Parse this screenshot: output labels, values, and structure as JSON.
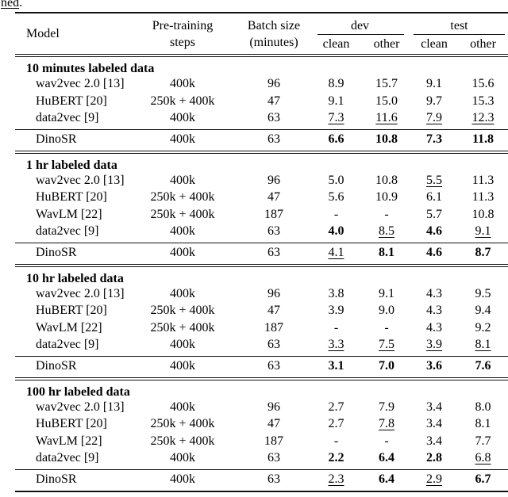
{
  "caption": {
    "underlined": "ned",
    "trailing": "."
  },
  "table": {
    "header": {
      "model": "Model",
      "pretraining_line1": "Pre-training",
      "pretraining_line2": "steps",
      "batch_line1": "Batch size",
      "batch_line2": "(minutes)",
      "dev": "dev",
      "test": "test",
      "dev_clean": "clean",
      "dev_other": "other",
      "test_clean": "clean",
      "test_other": "other"
    },
    "sections": [
      {
        "title": "10 minutes labeled data",
        "rows": [
          {
            "model": "wav2vec 2.0 [13]",
            "steps": "400k",
            "batch": "96",
            "vals": [
              {
                "t": "8.9"
              },
              {
                "t": "15.7"
              },
              {
                "t": "9.1"
              },
              {
                "t": "15.6"
              }
            ]
          },
          {
            "model": "HuBERT [20]",
            "steps": "250k + 400k",
            "batch": "47",
            "vals": [
              {
                "t": "9.1"
              },
              {
                "t": "15.0"
              },
              {
                "t": "9.7"
              },
              {
                "t": "15.3"
              }
            ]
          },
          {
            "model": "data2vec [9]",
            "steps": "400k",
            "batch": "63",
            "vals": [
              {
                "t": "7.3",
                "s": "u"
              },
              {
                "t": "11.6",
                "s": "u"
              },
              {
                "t": "7.9",
                "s": "u"
              },
              {
                "t": "12.3",
                "s": "u"
              }
            ]
          }
        ],
        "dinosr": {
          "model": "DinoSR",
          "steps": "400k",
          "batch": "63",
          "vals": [
            {
              "t": "6.6",
              "s": "b"
            },
            {
              "t": "10.8",
              "s": "b"
            },
            {
              "t": "7.3",
              "s": "b"
            },
            {
              "t": "11.8",
              "s": "b"
            }
          ]
        }
      },
      {
        "title": "1 hr labeled data",
        "rows": [
          {
            "model": "wav2vec 2.0 [13]",
            "steps": "400k",
            "batch": "96",
            "vals": [
              {
                "t": "5.0"
              },
              {
                "t": "10.8"
              },
              {
                "t": "5.5",
                "s": "u"
              },
              {
                "t": "11.3"
              }
            ]
          },
          {
            "model": "HuBERT [20]",
            "steps": "250k + 400k",
            "batch": "47",
            "vals": [
              {
                "t": "5.6"
              },
              {
                "t": "10.9"
              },
              {
                "t": "6.1"
              },
              {
                "t": "11.3"
              }
            ]
          },
          {
            "model": "WavLM [22]",
            "steps": "250k + 400k",
            "batch": "187",
            "vals": [
              {
                "t": "-"
              },
              {
                "t": "-"
              },
              {
                "t": "5.7"
              },
              {
                "t": "10.8"
              }
            ]
          },
          {
            "model": "data2vec [9]",
            "steps": "400k",
            "batch": "63",
            "vals": [
              {
                "t": "4.0",
                "s": "b"
              },
              {
                "t": "8.5",
                "s": "u"
              },
              {
                "t": "4.6",
                "s": "b"
              },
              {
                "t": "9.1",
                "s": "u"
              }
            ]
          }
        ],
        "dinosr": {
          "model": "DinoSR",
          "steps": "400k",
          "batch": "63",
          "vals": [
            {
              "t": "4.1",
              "s": "u"
            },
            {
              "t": "8.1",
              "s": "b"
            },
            {
              "t": "4.6",
              "s": "b"
            },
            {
              "t": "8.7",
              "s": "b"
            }
          ]
        }
      },
      {
        "title": "10 hr labeled data",
        "rows": [
          {
            "model": "wav2vec 2.0 [13]",
            "steps": "400k",
            "batch": "96",
            "vals": [
              {
                "t": "3.8"
              },
              {
                "t": "9.1"
              },
              {
                "t": "4.3"
              },
              {
                "t": "9.5"
              }
            ]
          },
          {
            "model": "HuBERT [20]",
            "steps": "250k + 400k",
            "batch": "47",
            "vals": [
              {
                "t": "3.9"
              },
              {
                "t": "9.0"
              },
              {
                "t": "4.3"
              },
              {
                "t": "9.4"
              }
            ]
          },
          {
            "model": "WavLM [22]",
            "steps": "250k + 400k",
            "batch": "187",
            "vals": [
              {
                "t": "-"
              },
              {
                "t": "-"
              },
              {
                "t": "4.3"
              },
              {
                "t": "9.2"
              }
            ]
          },
          {
            "model": "data2vec [9]",
            "steps": "400k",
            "batch": "63",
            "vals": [
              {
                "t": "3.3",
                "s": "u"
              },
              {
                "t": "7.5",
                "s": "u"
              },
              {
                "t": "3.9",
                "s": "u"
              },
              {
                "t": "8.1",
                "s": "u"
              }
            ]
          }
        ],
        "dinosr": {
          "model": "DinoSR",
          "steps": "400k",
          "batch": "63",
          "vals": [
            {
              "t": "3.1",
              "s": "b"
            },
            {
              "t": "7.0",
              "s": "b"
            },
            {
              "t": "3.6",
              "s": "b"
            },
            {
              "t": "7.6",
              "s": "b"
            }
          ]
        }
      },
      {
        "title": "100 hr labeled data",
        "rows": [
          {
            "model": "wav2vec 2.0 [13]",
            "steps": "400k",
            "batch": "96",
            "vals": [
              {
                "t": "2.7"
              },
              {
                "t": "7.9"
              },
              {
                "t": "3.4"
              },
              {
                "t": "8.0"
              }
            ]
          },
          {
            "model": "HuBERT [20]",
            "steps": "250k + 400k",
            "batch": "47",
            "vals": [
              {
                "t": "2.7"
              },
              {
                "t": "7.8",
                "s": "u"
              },
              {
                "t": "3.4"
              },
              {
                "t": "8.1"
              }
            ]
          },
          {
            "model": "WavLM [22]",
            "steps": "250k + 400k",
            "batch": "187",
            "vals": [
              {
                "t": "-"
              },
              {
                "t": "-"
              },
              {
                "t": "3.4"
              },
              {
                "t": "7.7"
              }
            ]
          },
          {
            "model": "data2vec [9]",
            "steps": "400k",
            "batch": "63",
            "vals": [
              {
                "t": "2.2",
                "s": "b"
              },
              {
                "t": "6.4",
                "s": "b"
              },
              {
                "t": "2.8",
                "s": "b"
              },
              {
                "t": "6.8",
                "s": "u"
              }
            ]
          }
        ],
        "dinosr": {
          "model": "DinoSR",
          "steps": "400k",
          "batch": "63",
          "vals": [
            {
              "t": "2.3",
              "s": "u"
            },
            {
              "t": "6.4",
              "s": "b"
            },
            {
              "t": "2.9",
              "s": "u"
            },
            {
              "t": "6.7",
              "s": "b"
            }
          ]
        }
      }
    ]
  }
}
